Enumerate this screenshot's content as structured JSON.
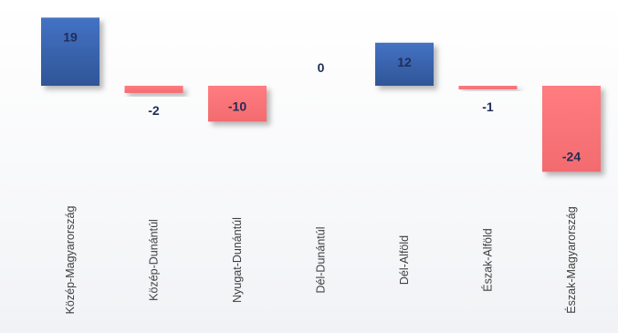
{
  "chart_data": {
    "type": "bar",
    "categories": [
      "Közép-Magyarország",
      "Közép-Dunántúl",
      "Nyugat-Dunántúl",
      "Dél-Dunántúl",
      "Dél-Alföld",
      "Észak-Alföld",
      "Észak-Magyarország"
    ],
    "values": [
      19,
      -2,
      -10,
      0,
      12,
      -1,
      -24
    ],
    "data_labels": [
      "19",
      "-2",
      "-10",
      "0",
      "12",
      "-1",
      "-24"
    ],
    "title": "",
    "xlabel": "",
    "ylabel": "",
    "ylim": [
      -25,
      20
    ],
    "grid": false,
    "legend": "none",
    "colors": {
      "positive": "#4472c4",
      "positive_dark": "#2f5597",
      "negative": "#ff7c80",
      "negative_dark": "#f26b6f",
      "label": "#1f2d57",
      "category": "#404040"
    }
  }
}
